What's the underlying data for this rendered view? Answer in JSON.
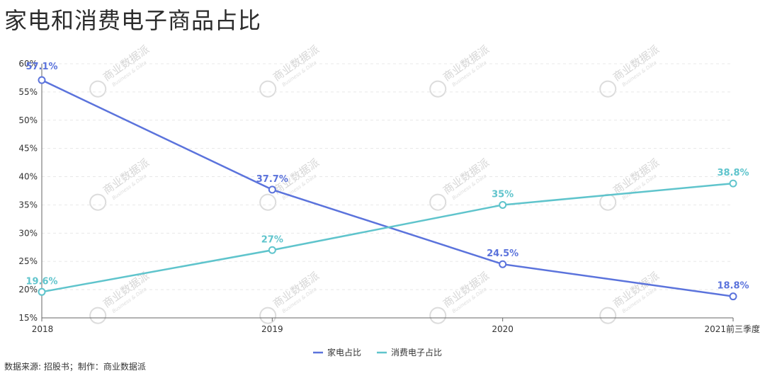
{
  "title": "家电和消费电子商品占比",
  "source": "数据来源: 招股书；制作：商业数据派",
  "watermark": {
    "text": "商业数据派",
    "subtext": "Business & Data"
  },
  "chart_data": {
    "type": "line",
    "title": "家电和消费电子商品占比",
    "categories": [
      "2018",
      "2019",
      "2020",
      "2021前三季度"
    ],
    "ylim": [
      15,
      60
    ],
    "yticks": [
      15,
      20,
      25,
      30,
      35,
      40,
      45,
      50,
      55,
      60
    ],
    "ytick_format": "{v}%",
    "grid": true,
    "legend_position": "bottom-center",
    "series": [
      {
        "name": "家电占比",
        "color": "#5b73dc",
        "values": [
          57.1,
          37.7,
          24.5,
          18.8
        ],
        "labels": [
          "57.1%",
          "37.7%",
          "24.5%",
          "18.8%"
        ]
      },
      {
        "name": "消费电子占比",
        "color": "#5fc4cc",
        "values": [
          19.6,
          27,
          35,
          38.8
        ],
        "labels": [
          "19.6%",
          "27%",
          "35%",
          "38.8%"
        ]
      }
    ]
  }
}
